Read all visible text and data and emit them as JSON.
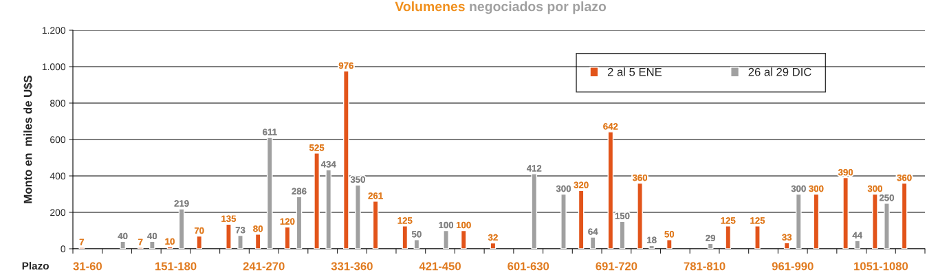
{
  "chart_data": {
    "type": "bar",
    "title": "Volumenes negociados por plazo",
    "xlabel": "Plazo",
    "ylabel": "Monto en  miles de U$S",
    "categories": [
      "31-60",
      null,
      null,
      "151-180",
      null,
      null,
      "241-270",
      null,
      null,
      "331-360",
      null,
      null,
      "421-450",
      null,
      null,
      "601-630",
      null,
      null,
      "691-720",
      null,
      null,
      "781-810",
      null,
      null,
      "961-990",
      null,
      null,
      "1051-1080",
      null
    ],
    "series": [
      {
        "name": "2 al 5 ENE",
        "color": "#e2541a",
        "values": [
          7,
          null,
          7,
          10,
          70,
          135,
          80,
          120,
          525,
          976,
          261,
          125,
          null,
          100,
          32,
          null,
          null,
          320,
          642,
          360,
          50,
          null,
          125,
          125,
          33,
          300,
          390,
          300,
          360
        ]
      },
      {
        "name": "26 al 29 DIC",
        "color": "#a0a0a0",
        "values": [
          null,
          40,
          40,
          219,
          null,
          73,
          611,
          286,
          434,
          350,
          null,
          50,
          100,
          null,
          null,
          412,
          300,
          64,
          150,
          18,
          null,
          29,
          null,
          null,
          300,
          null,
          44,
          250,
          null
        ]
      }
    ],
    "ylim": [
      0,
      1200
    ],
    "yticks": [
      0,
      200,
      400,
      600,
      800,
      {
        "value": 1000,
        "label": "1.000"
      },
      {
        "value": 1200,
        "label": "1.200"
      }
    ],
    "grid": "y",
    "legend": "top right",
    "data_labels": true
  }
}
